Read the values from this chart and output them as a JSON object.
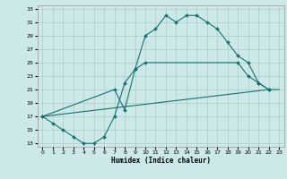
{
  "xlabel": "Humidex (Indice chaleur)",
  "bg_color": "#cce8e8",
  "grid_color": "#aacccc",
  "line_color": "#1a7070",
  "xlim": [
    -0.5,
    23.5
  ],
  "ylim": [
    12.5,
    33.5
  ],
  "xticks": [
    0,
    1,
    2,
    3,
    4,
    5,
    6,
    7,
    8,
    9,
    10,
    11,
    12,
    13,
    14,
    15,
    16,
    17,
    18,
    19,
    20,
    21,
    22,
    23
  ],
  "yticks": [
    13,
    15,
    17,
    19,
    21,
    23,
    25,
    27,
    29,
    31,
    33
  ],
  "line1_x": [
    0,
    1,
    2,
    3,
    4,
    5,
    6,
    7,
    8,
    9,
    10,
    11,
    12,
    13,
    14,
    15,
    16,
    17,
    18,
    19,
    20,
    21,
    22
  ],
  "line1_y": [
    17,
    16,
    15,
    14,
    13,
    13,
    14,
    17,
    22,
    24,
    29,
    30,
    32,
    31,
    32,
    32,
    31,
    30,
    28,
    26,
    25,
    22,
    21
  ],
  "line2_x": [
    0,
    7,
    8,
    9,
    10,
    19,
    20,
    21,
    22
  ],
  "line2_y": [
    17,
    21,
    18,
    24,
    25,
    25,
    23,
    22,
    21
  ],
  "line3_x": [
    0,
    22,
    23
  ],
  "line3_y": [
    17,
    21,
    21
  ]
}
